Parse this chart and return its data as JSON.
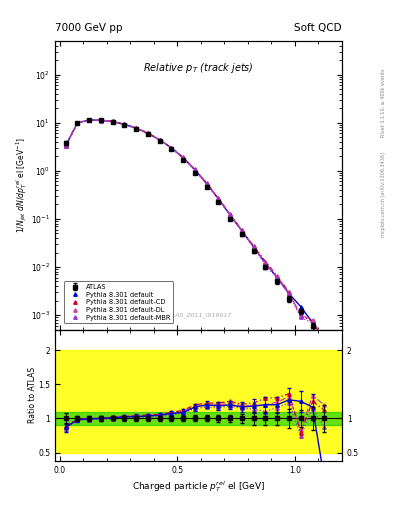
{
  "title_left": "7000 GeV pp",
  "title_right": "Soft QCD",
  "plot_title": "Relative $p_T$ (track jets)",
  "xlabel": "Charged particle $p^{rel}_{T}$ el [GeV]",
  "ylabel_main": "$1/N_{jet}$ $dN/dp^{rel}_{T}$ el [GeV$^{-1}$]",
  "ylabel_ratio": "Ratio to ATLAS",
  "right_label_top": "Rivet 3.1.10, ≥ 400k events",
  "right_label_bottom": "mcplots.cern.ch [arXiv:1306.3436]",
  "watermark": "ATLAS_2011_I919017",
  "atlas_x": [
    0.025,
    0.075,
    0.125,
    0.175,
    0.225,
    0.275,
    0.325,
    0.375,
    0.425,
    0.475,
    0.525,
    0.575,
    0.625,
    0.675,
    0.725,
    0.775,
    0.825,
    0.875,
    0.925,
    0.975,
    1.025,
    1.075,
    1.125
  ],
  "atlas_y": [
    3.8,
    10.0,
    11.5,
    11.2,
    10.5,
    9.0,
    7.5,
    5.8,
    4.2,
    2.8,
    1.7,
    0.9,
    0.45,
    0.22,
    0.1,
    0.048,
    0.022,
    0.01,
    0.005,
    0.0022,
    0.0012,
    0.0006,
    0.00025
  ],
  "atlas_yerr": [
    0.3,
    0.4,
    0.4,
    0.4,
    0.3,
    0.3,
    0.25,
    0.2,
    0.15,
    0.1,
    0.07,
    0.04,
    0.02,
    0.01,
    0.005,
    0.003,
    0.002,
    0.001,
    0.0005,
    0.0003,
    0.00015,
    0.0001,
    5e-05
  ],
  "pythia_default_x": [
    0.025,
    0.075,
    0.125,
    0.175,
    0.225,
    0.275,
    0.325,
    0.375,
    0.425,
    0.475,
    0.525,
    0.575,
    0.625,
    0.675,
    0.725,
    0.775,
    0.825,
    0.875,
    0.925,
    0.975,
    1.025,
    1.075,
    1.125
  ],
  "pythia_default_y": [
    3.3,
    9.8,
    11.4,
    11.2,
    10.6,
    9.2,
    7.7,
    6.0,
    4.4,
    3.0,
    1.85,
    1.05,
    0.54,
    0.26,
    0.12,
    0.056,
    0.026,
    0.012,
    0.006,
    0.0028,
    0.0015,
    0.0007,
    3e-05
  ],
  "pythia_cd_x": [
    0.025,
    0.075,
    0.125,
    0.175,
    0.225,
    0.275,
    0.325,
    0.375,
    0.425,
    0.475,
    0.525,
    0.575,
    0.625,
    0.675,
    0.725,
    0.775,
    0.825,
    0.875,
    0.925,
    0.975,
    1.025,
    1.075,
    1.125
  ],
  "pythia_cd_y": [
    3.4,
    9.9,
    11.5,
    11.3,
    10.7,
    9.3,
    7.8,
    6.1,
    4.45,
    3.05,
    1.9,
    1.08,
    0.55,
    0.27,
    0.125,
    0.058,
    0.027,
    0.013,
    0.0065,
    0.003,
    0.00095,
    0.00075,
    0.00028
  ],
  "pythia_dl_x": [
    0.025,
    0.075,
    0.125,
    0.175,
    0.225,
    0.275,
    0.325,
    0.375,
    0.425,
    0.475,
    0.525,
    0.575,
    0.625,
    0.675,
    0.725,
    0.775,
    0.825,
    0.875,
    0.925,
    0.975,
    1.025,
    1.075,
    1.125
  ],
  "pythia_dl_y": [
    3.35,
    9.85,
    11.45,
    11.25,
    10.65,
    9.25,
    7.75,
    6.05,
    4.42,
    3.02,
    1.87,
    1.06,
    0.535,
    0.265,
    0.122,
    0.057,
    0.026,
    0.012,
    0.0062,
    0.0029,
    0.001,
    0.0008,
    0.0003
  ],
  "pythia_mbr_x": [
    0.025,
    0.075,
    0.125,
    0.175,
    0.225,
    0.275,
    0.325,
    0.375,
    0.425,
    0.475,
    0.525,
    0.575,
    0.625,
    0.675,
    0.725,
    0.775,
    0.825,
    0.875,
    0.925,
    0.975,
    1.025,
    1.075,
    1.125
  ],
  "pythia_mbr_y": [
    3.2,
    9.7,
    11.3,
    11.1,
    10.4,
    9.1,
    7.6,
    5.9,
    4.3,
    2.95,
    1.83,
    1.03,
    0.525,
    0.255,
    0.118,
    0.055,
    0.025,
    0.011,
    0.0058,
    0.0027,
    0.0009,
    0.00068,
    0.00022
  ],
  "color_atlas": "#000000",
  "color_default": "#0000CC",
  "color_cd": "#CC0033",
  "color_dl": "#CC44AA",
  "color_mbr": "#9933CC",
  "ylim_main": [
    0.0005,
    500
  ],
  "ylim_ratio": [
    0.38,
    2.3
  ],
  "xlim": [
    -0.02,
    1.2
  ],
  "green_band": [
    0.9,
    1.1
  ],
  "yellow_band": [
    0.5,
    2.0
  ],
  "bg_color": "#f8f8f8"
}
